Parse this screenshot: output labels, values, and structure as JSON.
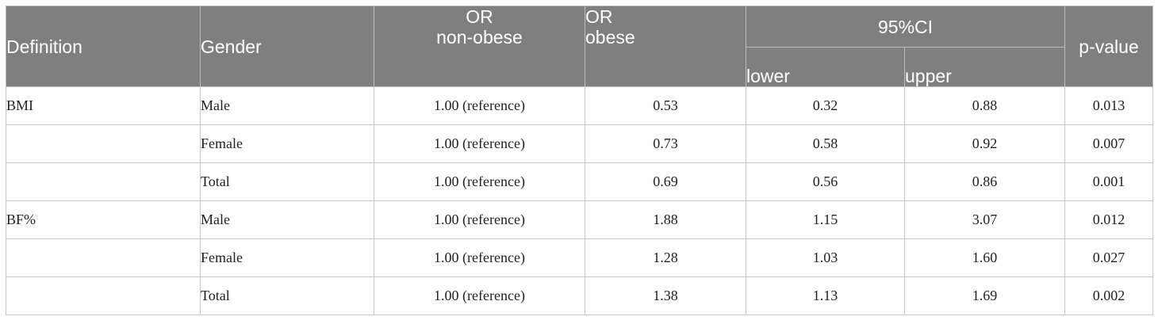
{
  "table": {
    "headers": {
      "definition": "Definition",
      "gender": "Gender",
      "or_nonobese_line1": "OR",
      "or_nonobese_line2": "non-obese",
      "or_obese_line1": "OR",
      "or_obese_line2": "obese",
      "ci": "95%CI",
      "ci_lower": "lower",
      "ci_upper": "upper",
      "pvalue": "p-value"
    },
    "rows": [
      {
        "definition": "BMI",
        "gender": "Male",
        "or_nonobese": "1.00 (reference)",
        "or_obese": "0.53",
        "lower": "0.32",
        "upper": "0.88",
        "p": "0.013"
      },
      {
        "definition": "",
        "gender": "Female",
        "or_nonobese": "1.00 (reference)",
        "or_obese": "0.73",
        "lower": "0.58",
        "upper": "0.92",
        "p": "0.007"
      },
      {
        "definition": "",
        "gender": "Total",
        "or_nonobese": "1.00 (reference)",
        "or_obese": "0.69",
        "lower": "0.56",
        "upper": "0.86",
        "p": "0.001"
      },
      {
        "definition": "BF%",
        "gender": "Male",
        "or_nonobese": "1.00 (reference)",
        "or_obese": "1.88",
        "lower": "1.15",
        "upper": "3.07",
        "p": "0.012"
      },
      {
        "definition": "",
        "gender": "Female",
        "or_nonobese": "1.00 (reference)",
        "or_obese": "1.28",
        "lower": "1.03",
        "upper": "1.60",
        "p": "0.027"
      },
      {
        "definition": "",
        "gender": "Total",
        "or_nonobese": "1.00 (reference)",
        "or_obese": "1.38",
        "lower": "1.13",
        "upper": "1.69",
        "p": "0.002"
      }
    ]
  }
}
